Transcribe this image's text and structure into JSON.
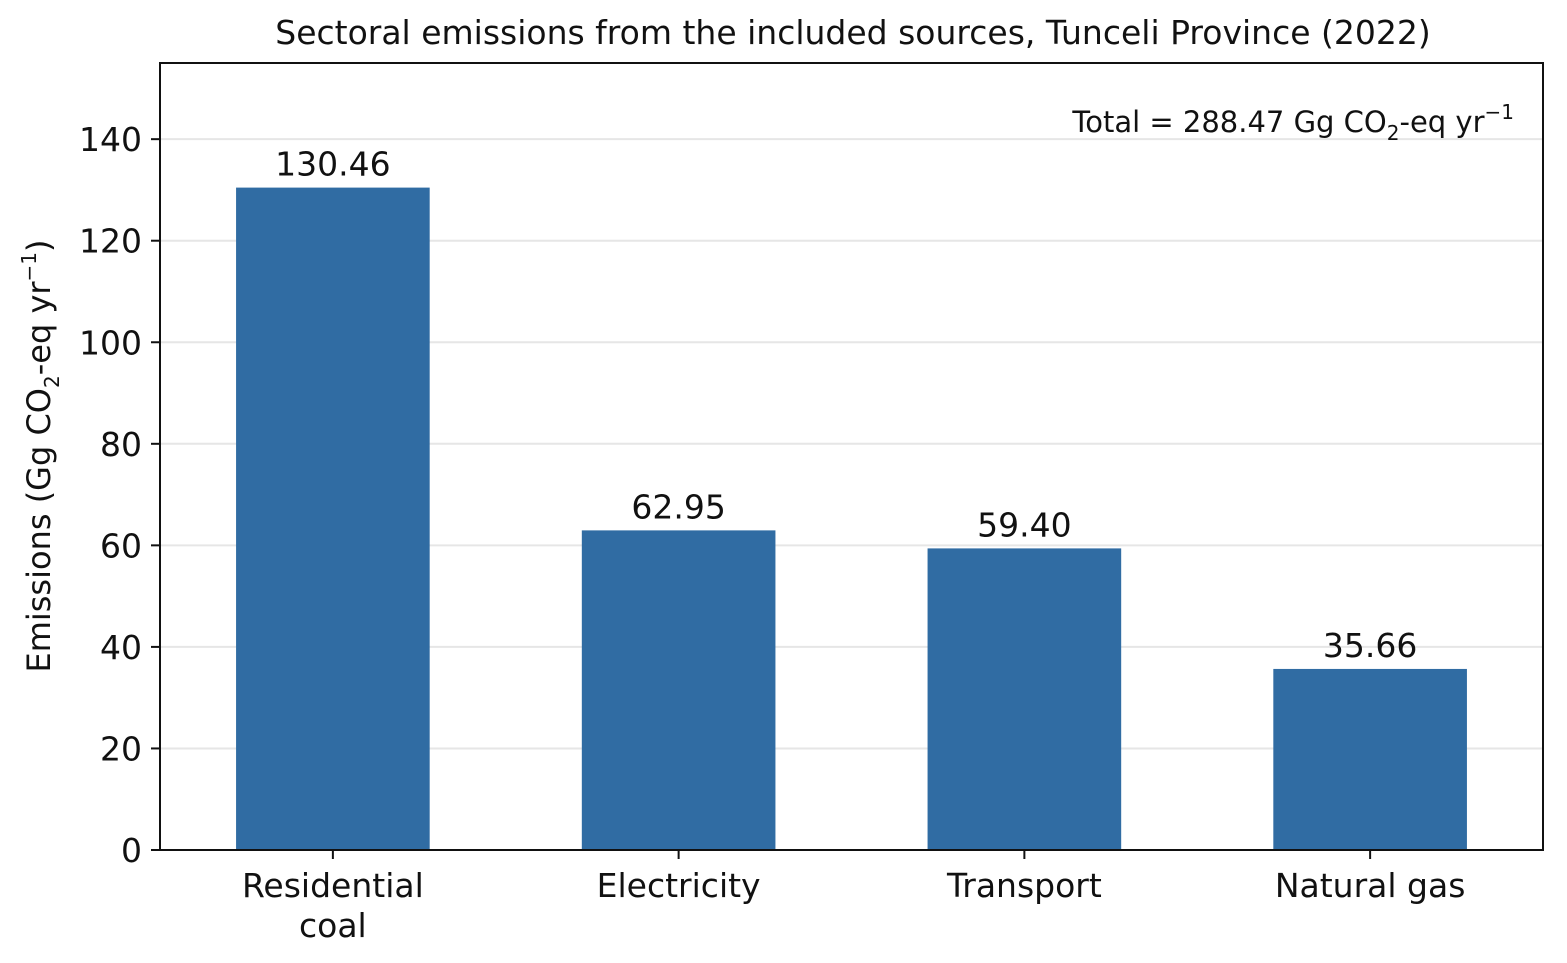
{
  "chart_data": {
    "type": "bar",
    "title": "Sectoral emissions from the included sources, Tunceli Province (2022)",
    "categories": [
      "Residential coal",
      "Electricity",
      "Transport",
      "Natural gas"
    ],
    "category_lines": [
      [
        "Residential",
        "coal"
      ],
      [
        "Electricity"
      ],
      [
        "Transport"
      ],
      [
        "Natural gas"
      ]
    ],
    "values": [
      130.46,
      62.95,
      59.4,
      35.66
    ],
    "value_labels": [
      "130.46",
      "62.95",
      "59.40",
      "35.66"
    ],
    "ylabel": {
      "prefix": "Emissions (Gg CO",
      "sub": "2",
      "middle": "-eq yr",
      "sup": "−1",
      "suffix": ")"
    },
    "ylim": [
      0,
      155
    ],
    "yticks": [
      0,
      20,
      40,
      60,
      80,
      100,
      120,
      140
    ],
    "grid": "horizontal",
    "bar_color": "#306ca3",
    "annotation": {
      "prefix": "Total = 288.47 Gg CO",
      "sub": "2",
      "middle": "-eq yr",
      "sup": "−1",
      "position": "top-right"
    }
  }
}
